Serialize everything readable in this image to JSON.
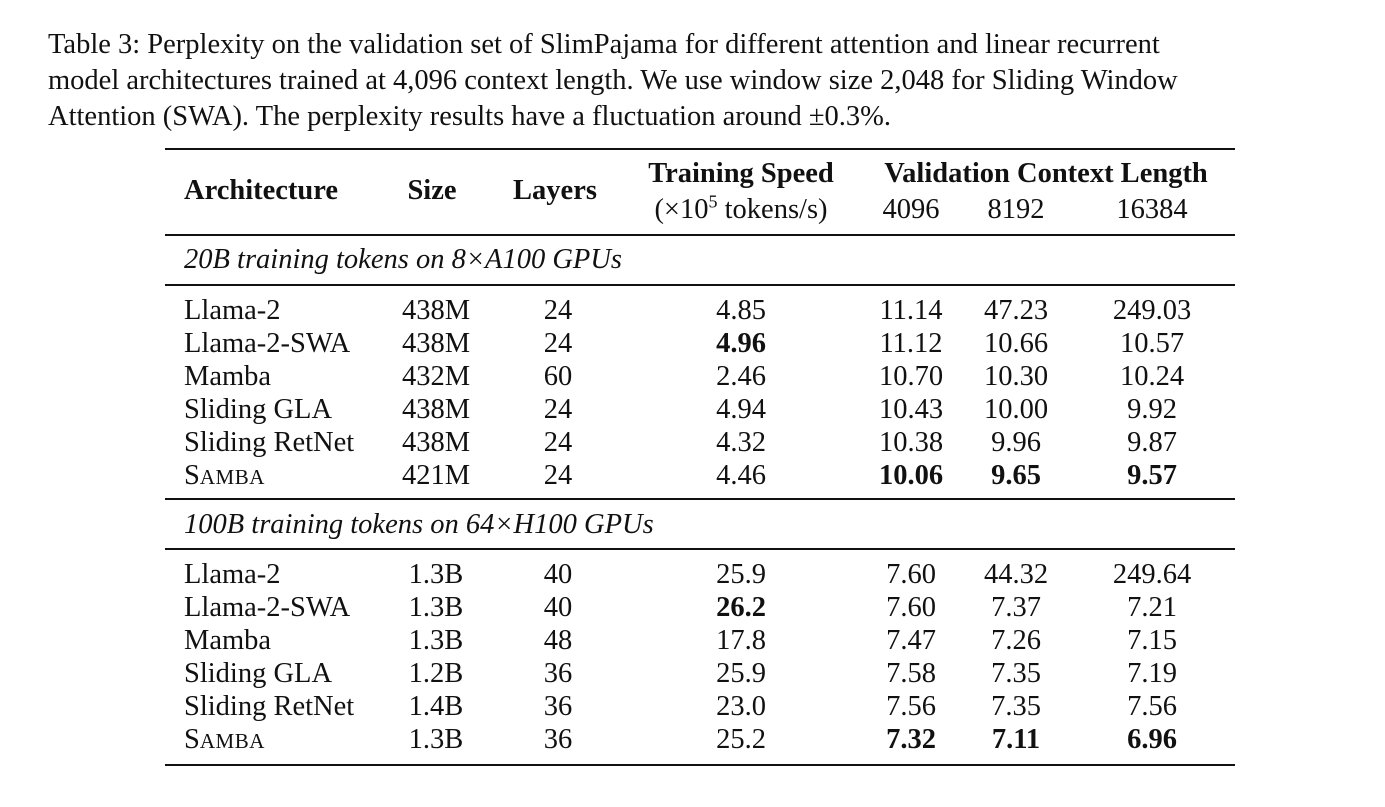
{
  "caption": {
    "lines": [
      "Table 3: Perplexity on the validation set of SlimPajama for different attention and linear recurrent",
      "model architectures trained at 4,096 context length. We use window size 2,048 for Sliding Window",
      "Attention (SWA). The perplexity results have a fluctuation around ±0.3%."
    ]
  },
  "header": {
    "architecture": "Architecture",
    "size": "Size",
    "layers": "Layers",
    "training_speed": "Training Speed",
    "speed_unit_pre": "(×10",
    "speed_unit_exp": "5",
    "speed_unit_post": " tokens/s)",
    "validation": "Validation Context Length",
    "ctx": [
      "4096",
      "8192",
      "16384"
    ]
  },
  "sections": [
    {
      "title": "20B training tokens on 8×A100 GPUs",
      "rows": [
        {
          "arch": "Llama-2",
          "size": "438M",
          "layers": "24",
          "speed": "4.85",
          "v1": "11.14",
          "v2": "47.23",
          "v3": "249.03"
        },
        {
          "arch": "Llama-2-SWA",
          "size": "438M",
          "layers": "24",
          "speed": "4.96",
          "v1": "11.12",
          "v2": "10.66",
          "v3": "10.57"
        },
        {
          "arch": "Mamba",
          "size": "432M",
          "layers": "60",
          "speed": "2.46",
          "v1": "10.70",
          "v2": "10.30",
          "v3": "10.24"
        },
        {
          "arch": "Sliding GLA",
          "size": "438M",
          "layers": "24",
          "speed": "4.94",
          "v1": "10.43",
          "v2": "10.00",
          "v3": "9.92"
        },
        {
          "arch": "Sliding RetNet",
          "size": "438M",
          "layers": "24",
          "speed": "4.32",
          "v1": "10.38",
          "v2": "9.96",
          "v3": "9.87"
        },
        {
          "arch_sc_first": "S",
          "arch_sc_rest": "AMBA",
          "size": "421M",
          "layers": "24",
          "speed": "4.46",
          "v1": "10.06",
          "v2": "9.65",
          "v3": "9.57"
        }
      ]
    },
    {
      "title": "100B training tokens on 64×H100 GPUs",
      "rows": [
        {
          "arch": "Llama-2",
          "size": "1.3B",
          "layers": "40",
          "speed": "25.9",
          "v1": "7.60",
          "v2": "44.32",
          "v3": "249.64"
        },
        {
          "arch": "Llama-2-SWA",
          "size": "1.3B",
          "layers": "40",
          "speed": "26.2",
          "v1": "7.60",
          "v2": "7.37",
          "v3": "7.21"
        },
        {
          "arch": "Mamba",
          "size": "1.3B",
          "layers": "48",
          "speed": "17.8",
          "v1": "7.47",
          "v2": "7.26",
          "v3": "7.15"
        },
        {
          "arch": "Sliding GLA",
          "size": "1.2B",
          "layers": "36",
          "speed": "25.9",
          "v1": "7.58",
          "v2": "7.35",
          "v3": "7.19"
        },
        {
          "arch": "Sliding RetNet",
          "size": "1.4B",
          "layers": "36",
          "speed": "23.0",
          "v1": "7.56",
          "v2": "7.35",
          "v3": "7.56"
        },
        {
          "arch_sc_first": "S",
          "arch_sc_rest": "AMBA",
          "size": "1.3B",
          "layers": "36",
          "speed": "25.2",
          "v1": "7.32",
          "v2": "7.11",
          "v3": "6.96"
        }
      ]
    }
  ]
}
